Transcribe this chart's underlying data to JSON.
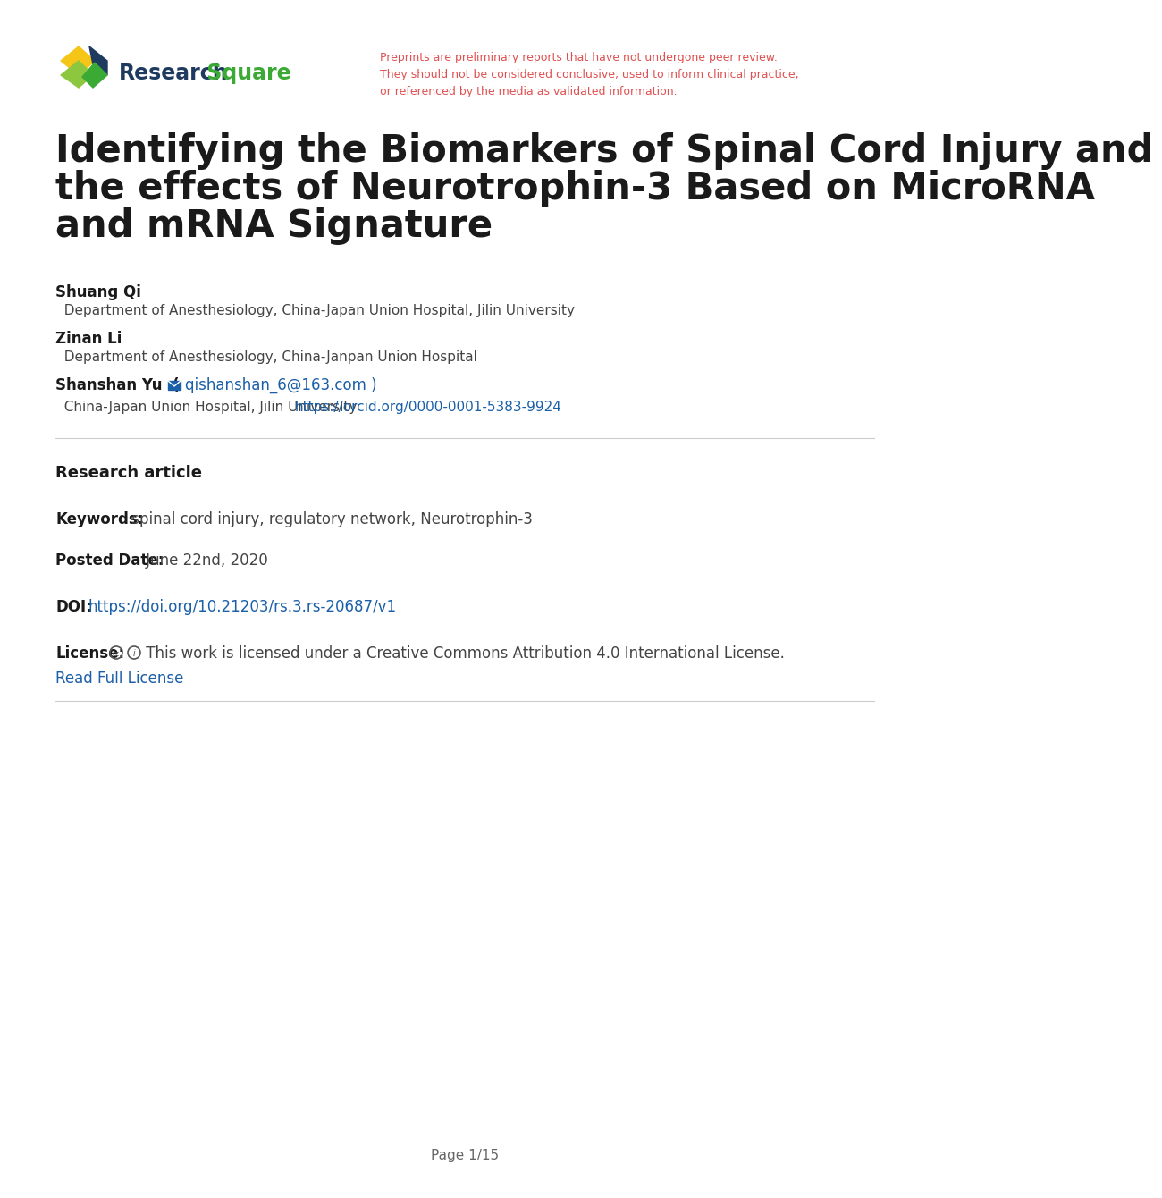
{
  "bg_color": "#ffffff",
  "title_line1": "Identifying the Biomarkers of Spinal Cord Injury and",
  "title_line2": "the effects of Neurotrophin-3 Based on MicroRNA",
  "title_line3": "and mRNA Signature",
  "title_color": "#1a1a1a",
  "title_fontsize": 30,
  "preprint_warning": "Preprints are preliminary reports that have not undergone peer review.\nThey should not be considered conclusive, used to inform clinical practice,\nor referenced by the media as validated information.",
  "preprint_color": "#e05050",
  "preprint_fontsize": 9.0,
  "author1_name": "Shuang Qi",
  "author1_affil": "  Department of Anesthesiology, China-Japan Union Hospital, Jilin University",
  "author2_name": "Zinan Li",
  "author2_affil": "  Department of Anesthesiology, China-Janpan Union Hospital",
  "author3_name": "Shanshan Yu",
  "author3_email": "qishanshan_6@163.com",
  "author3_affil": "  China-Japan Union Hospital, Jilin University",
  "author3_orcid": "https://orcid.org/0000-0001-5383-9924",
  "author_name_fontsize": 12,
  "author_affil_fontsize": 11,
  "link_color": "#1a5fa8",
  "separator_color": "#cccccc",
  "section_label": "Research article",
  "section_fontsize": 13,
  "keywords_label": "Keywords:",
  "keywords_text": " spinal cord injury, regulatory network, Neurotrophin-3",
  "posted_label": "Posted Date:",
  "posted_text": " June 22nd, 2020",
  "doi_label": "DOI:",
  "doi_url": "https://doi.org/10.21203/rs.3.rs-20687/v1",
  "license_label": "License:",
  "license_text": " This work is licensed under a Creative Commons Attribution 4.0 International License.",
  "license_link": "Read Full License",
  "meta_fontsize": 12,
  "page_footer": "Page 1/15",
  "footer_fontsize": 11,
  "rs_dark_blue": "#1e3a5f",
  "rs_green": "#3aaa35",
  "rs_light_green": "#8dc63f",
  "rs_yellow": "#f5c518",
  "link_color_blue": "#1a5fa8"
}
